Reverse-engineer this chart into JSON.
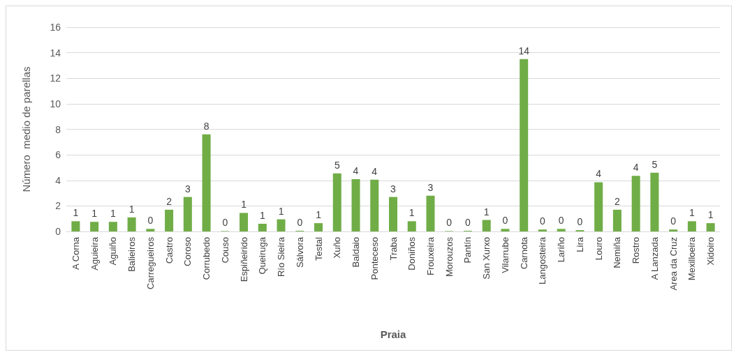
{
  "chart_data": {
    "type": "bar",
    "xlabel": "Praia",
    "ylabel": "Número  medio de parellas",
    "categories": [
      "A Corna",
      "Aguieira",
      "Aguiño",
      "Balieiros",
      "Carregueiros",
      "Castro",
      "Coroso",
      "Corrubedo",
      "Couso",
      "Espiñeirido",
      "Queiruga",
      "Río Sieira",
      "Sálvora",
      "Testal",
      "Xuño",
      "Baldaio",
      "Ponteceso",
      "Traba",
      "Doniños",
      "Frouxeira",
      "Morouzos",
      "Pantín",
      "San Xurxo",
      "Vilarrube",
      "Carnota",
      "Langosteira",
      "Lariño",
      "Lira",
      "Louro",
      "Nemiña",
      "Rostro",
      "A Lanzada",
      "Area da Cruz",
      "Mexilloeira",
      "Xidoiro"
    ],
    "values": [
      0.8,
      0.75,
      0.75,
      1.1,
      0.2,
      1.7,
      2.7,
      7.6,
      0.03,
      1.45,
      0.6,
      0.95,
      0.05,
      0.65,
      4.55,
      4.1,
      4.05,
      2.7,
      0.8,
      2.8,
      0.03,
      0.05,
      0.9,
      0.2,
      13.5,
      0.15,
      0.2,
      0.1,
      3.85,
      1.7,
      4.35,
      4.6,
      0.15,
      0.8,
      0.65
    ],
    "value_labels": [
      "1",
      "1",
      "1",
      "1",
      "0",
      "2",
      "3",
      "8",
      "0",
      "1",
      "1",
      "1",
      "0",
      "1",
      "5",
      "4",
      "4",
      "3",
      "1",
      "3",
      "0",
      "0",
      "1",
      "0",
      "14",
      "0",
      "0",
      "0",
      "4",
      "2",
      "4",
      "5",
      "0",
      "1",
      "1"
    ],
    "color": "#70ad47",
    "ylim": [
      0,
      16
    ],
    "yticks": [
      0,
      2,
      4,
      6,
      8,
      10,
      12,
      14,
      16
    ],
    "grid": "y"
  }
}
